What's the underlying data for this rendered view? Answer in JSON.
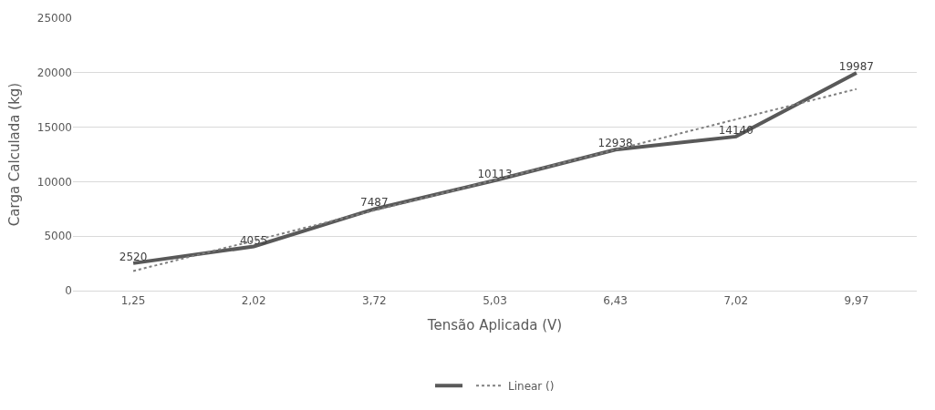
{
  "chart_data": {
    "type": "line",
    "xlabel": "Tensão Aplicada (V)",
    "ylabel": "Carga Calculada (kg)",
    "categories": [
      "1,25",
      "2,02",
      "3,72",
      "5,03",
      "6,43",
      "7,02",
      "9,97"
    ],
    "series": [
      {
        "color": "#595959",
        "values": [
          2520,
          4055,
          7487,
          10113,
          12938,
          14140,
          19987
        ],
        "value_labels": [
          "2520",
          "4055",
          "7487",
          "10113",
          "12938",
          "14140",
          "19987"
        ],
        "line_style": "solid"
      },
      {
        "name": "Linear ()",
        "color": "#7f7f7f",
        "x": [
          "1,25",
          "9,97"
        ],
        "values": [
          1800,
          18500
        ],
        "line_style": "dotted"
      }
    ],
    "ylim": [
      0,
      25000
    ],
    "yticks": [
      0,
      5000,
      10000,
      15000,
      20000,
      25000
    ],
    "grid": "y",
    "legend": "bottom",
    "marker": "none"
  }
}
